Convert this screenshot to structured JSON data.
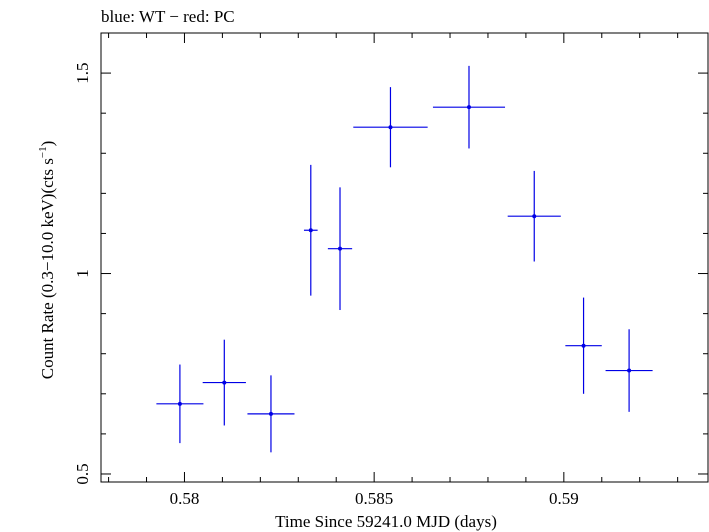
{
  "chart_data": {
    "type": "scatter",
    "title": "blue: WT − red: PC",
    "xlabel": "Time Since 59241.0 MJD (days)",
    "ylabel_main": "Count Rate (0.3−10.0 keV)(cts s",
    "ylabel_sup": "−1",
    "ylabel_tail": ")",
    "xlim": [
      0.5778,
      0.5938
    ],
    "ylim": [
      0.48,
      1.6
    ],
    "x_ticks": [
      {
        "value": 0.58,
        "label": "0.58"
      },
      {
        "value": 0.585,
        "label": "0.585"
      },
      {
        "value": 0.59,
        "label": "0.59"
      }
    ],
    "y_ticks": [
      {
        "value": 0.5,
        "label": "0.5"
      },
      {
        "value": 1.0,
        "label": "1"
      },
      {
        "value": 1.5,
        "label": "1.5"
      }
    ],
    "x_minor_step": 0.001,
    "y_minor_step": 0.1,
    "grid": false,
    "series": [
      {
        "color": "#0000e6",
        "points": [
          {
            "x": 0.57988,
            "xerr": 0.00062,
            "y": 0.675,
            "yerr": 0.098
          },
          {
            "x": 0.58105,
            "xerr": 0.00057,
            "y": 0.728,
            "yerr": 0.107
          },
          {
            "x": 0.58228,
            "xerr": 0.00062,
            "y": 0.65,
            "yerr": 0.096
          },
          {
            "x": 0.58333,
            "xerr": 0.00018,
            "y": 1.108,
            "yerr": 0.163
          },
          {
            "x": 0.5841,
            "xerr": 0.00032,
            "y": 1.062,
            "yerr": 0.153
          },
          {
            "x": 0.58543,
            "xerr": 0.00098,
            "y": 1.365,
            "yerr": 0.1
          },
          {
            "x": 0.5875,
            "xerr": 0.00095,
            "y": 1.415,
            "yerr": 0.103
          },
          {
            "x": 0.58922,
            "xerr": 0.0007,
            "y": 1.143,
            "yerr": 0.113
          },
          {
            "x": 0.59052,
            "xerr": 0.00048,
            "y": 0.82,
            "yerr": 0.12
          },
          {
            "x": 0.59172,
            "xerr": 0.00062,
            "y": 0.758,
            "yerr": 0.103
          }
        ]
      }
    ]
  }
}
